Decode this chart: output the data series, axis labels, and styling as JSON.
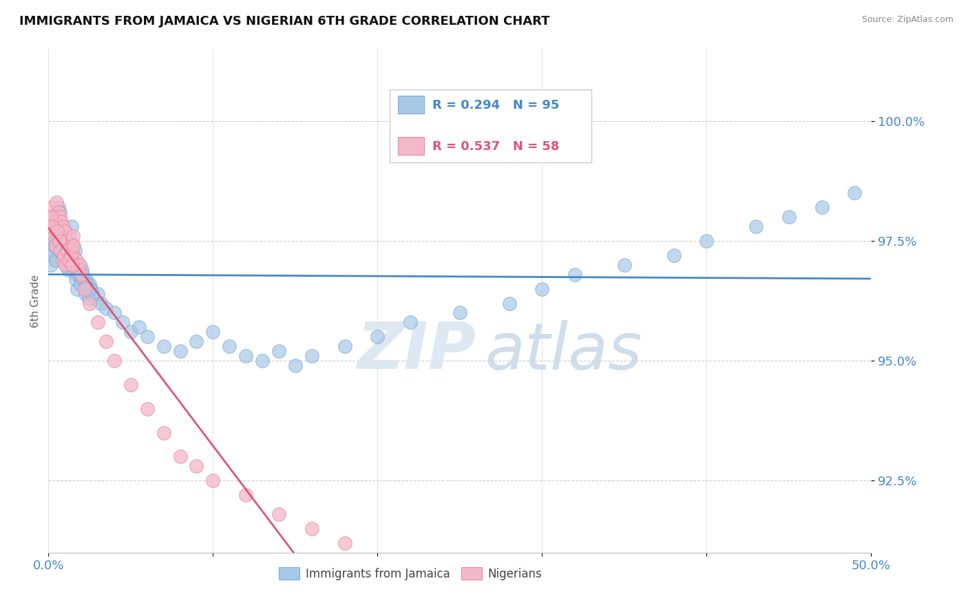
{
  "title": "IMMIGRANTS FROM JAMAICA VS NIGERIAN 6TH GRADE CORRELATION CHART",
  "source_text": "Source: ZipAtlas.com",
  "ylabel": "6th Grade",
  "xlim": [
    0.0,
    50.0
  ],
  "ylim": [
    91.0,
    101.5
  ],
  "yticks": [
    92.5,
    95.0,
    97.5,
    100.0
  ],
  "yticklabels": [
    "92.5%",
    "95.0%",
    "97.5%",
    "100.0%"
  ],
  "xtick_left_label": "0.0%",
  "xtick_right_label": "50.0%",
  "legend_labels": [
    "Immigrants from Jamaica",
    "Nigerians"
  ],
  "blue_color": "#a8c8e8",
  "pink_color": "#f4b8c8",
  "blue_edge_color": "#7aadd4",
  "pink_edge_color": "#e888a8",
  "blue_line_color": "#4488cc",
  "pink_line_color": "#dd5577",
  "legend_R_blue": "R = 0.294",
  "legend_N_blue": "N = 95",
  "legend_R_pink": "R = 0.537",
  "legend_N_pink": "N = 58",
  "watermark_zip": "ZIP",
  "watermark_atlas": "atlas",
  "background_color": "#ffffff",
  "grid_color": "#cccccc",
  "title_fontsize": 13,
  "tick_label_color": "#4488cc",
  "ylabel_color": "#666666",
  "blue_scatter_x": [
    0.2,
    0.3,
    0.4,
    0.5,
    0.5,
    0.6,
    0.6,
    0.7,
    0.7,
    0.8,
    0.8,
    0.9,
    0.9,
    1.0,
    1.0,
    1.1,
    1.1,
    1.2,
    1.2,
    1.3,
    1.3,
    1.4,
    1.5,
    1.5,
    1.6,
    1.6,
    1.7,
    1.8,
    1.9,
    2.0,
    2.1,
    2.2,
    2.3,
    2.4,
    2.5,
    2.6,
    2.8,
    3.0,
    3.2,
    3.5,
    4.0,
    4.5,
    5.0,
    5.5,
    6.0,
    7.0,
    8.0,
    9.0,
    10.0,
    11.0,
    12.0,
    13.0,
    14.0,
    15.0,
    16.0,
    18.0,
    20.0,
    22.0,
    25.0,
    28.0,
    30.0,
    32.0,
    35.0,
    38.0,
    40.0,
    43.0,
    45.0,
    47.0,
    49.0,
    0.15,
    0.25,
    0.35,
    0.45,
    0.55,
    0.65,
    0.75,
    0.85,
    0.95,
    1.05,
    1.15,
    1.25,
    1.35,
    1.45,
    1.55,
    1.65,
    1.75,
    1.85,
    1.95,
    2.05,
    2.15,
    2.25,
    2.35,
    2.45,
    2.55,
    2.65
  ],
  "blue_scatter_y": [
    97.3,
    97.5,
    97.8,
    97.6,
    98.0,
    97.9,
    98.2,
    97.7,
    98.1,
    97.4,
    97.8,
    97.2,
    97.6,
    97.1,
    97.5,
    97.0,
    97.4,
    96.9,
    97.3,
    97.2,
    97.6,
    97.8,
    97.4,
    97.1,
    97.3,
    97.0,
    96.8,
    96.9,
    97.0,
    96.7,
    96.8,
    96.5,
    96.7,
    96.4,
    96.6,
    96.5,
    96.3,
    96.4,
    96.2,
    96.1,
    96.0,
    95.8,
    95.6,
    95.7,
    95.5,
    95.3,
    95.2,
    95.4,
    95.6,
    95.3,
    95.1,
    95.0,
    95.2,
    94.9,
    95.1,
    95.3,
    95.5,
    95.8,
    96.0,
    96.2,
    96.5,
    96.8,
    97.0,
    97.2,
    97.5,
    97.8,
    98.0,
    98.2,
    98.5,
    97.0,
    97.2,
    97.4,
    97.1,
    97.6,
    97.3,
    97.7,
    97.2,
    97.5,
    97.0,
    97.3,
    97.1,
    97.4,
    97.2,
    96.9,
    96.7,
    96.5,
    96.8,
    96.6,
    96.9,
    96.7,
    96.4,
    96.6,
    96.3,
    96.5,
    96.4
  ],
  "pink_scatter_x": [
    0.1,
    0.2,
    0.3,
    0.4,
    0.5,
    0.5,
    0.6,
    0.6,
    0.7,
    0.7,
    0.8,
    0.8,
    0.9,
    0.9,
    1.0,
    1.0,
    1.1,
    1.1,
    1.2,
    1.3,
    1.4,
    1.5,
    1.5,
    1.6,
    1.7,
    1.8,
    1.9,
    2.0,
    2.2,
    2.5,
    3.0,
    3.5,
    4.0,
    5.0,
    6.0,
    7.0,
    8.0,
    9.0,
    10.0,
    12.0,
    14.0,
    16.0,
    18.0,
    0.15,
    0.25,
    0.35,
    0.45,
    0.55,
    0.65,
    0.75,
    0.85,
    0.95,
    1.05,
    1.15,
    1.25,
    1.35,
    1.45,
    1.55
  ],
  "pink_scatter_y": [
    97.8,
    98.2,
    98.0,
    97.9,
    98.3,
    97.7,
    97.8,
    98.1,
    97.6,
    98.0,
    97.5,
    97.9,
    97.4,
    97.8,
    97.3,
    97.7,
    97.2,
    97.5,
    97.1,
    97.3,
    97.4,
    97.2,
    97.6,
    97.0,
    97.1,
    96.9,
    97.0,
    96.8,
    96.5,
    96.2,
    95.8,
    95.4,
    95.0,
    94.5,
    94.0,
    93.5,
    93.0,
    92.8,
    92.5,
    92.2,
    91.8,
    91.5,
    91.2,
    98.0,
    97.8,
    97.6,
    97.4,
    97.7,
    97.5,
    97.3,
    97.1,
    97.2,
    97.0,
    97.3,
    97.1,
    97.2,
    97.0,
    97.4
  ]
}
